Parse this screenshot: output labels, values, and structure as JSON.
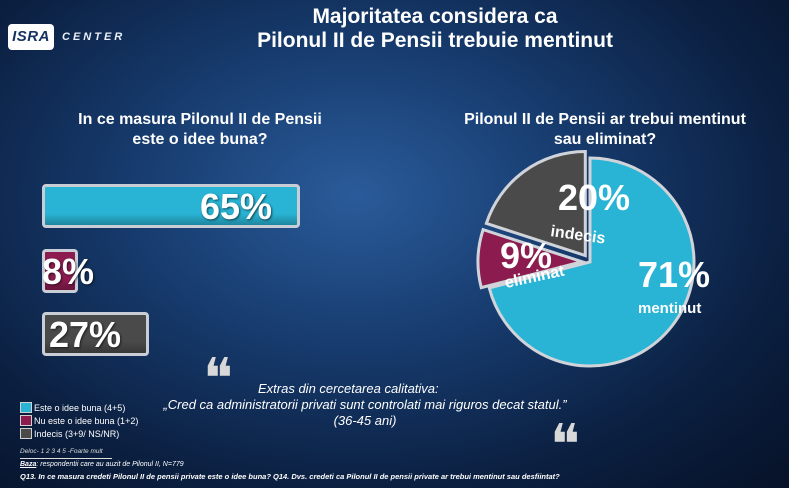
{
  "brand": {
    "logo_text": "ISRA",
    "center_text": "CENTER"
  },
  "title": {
    "line1": "Majoritatea considera ca",
    "line2": "Pilonul II de Pensii trebuie mentinut"
  },
  "chart_data": [
    {
      "type": "bar",
      "title_line1": "In ce masura Pilonul II de Pensii",
      "title_line2": "este o idee buna?",
      "categories": [
        "Este o idee buna (4+5)",
        "Nu este o idee buna (1+2)",
        "Indecis (3+9/ NS/NR)"
      ],
      "values": [
        65,
        8,
        27
      ],
      "labels": [
        "65%",
        "8%",
        "27%"
      ],
      "colors": [
        "#29b3d4",
        "#8c1c4f",
        "#4a4a4a"
      ],
      "xlim": [
        0,
        100
      ]
    },
    {
      "type": "pie",
      "title_line1": "Pilonul II de Pensii ar trebui mentinut",
      "title_line2": "sau eliminat?",
      "slices": [
        {
          "name": "mentinut",
          "value": 71,
          "label": "71%",
          "color": "#29b3d4"
        },
        {
          "name": "eliminat",
          "value": 9,
          "label": "9%",
          "color": "#8c1c4f"
        },
        {
          "name": "indecis",
          "value": 20,
          "label": "20%",
          "color": "#4a4a4a"
        }
      ]
    }
  ],
  "legend": [
    {
      "label": "Este o idee buna  (4+5)",
      "color": "#29b3d4"
    },
    {
      "label": "Nu este o idee buna (1+2)",
      "color": "#8c1c4f"
    },
    {
      "label": "Indecis (3+9/ NS/NR)",
      "color": "#4a4a4a"
    }
  ],
  "scale_text": "Deloc- 1 2 3 4 5 -Foarte mult",
  "extract": {
    "title": "Extras din cercetarea calitativa:",
    "quote": "„Cred ca administratorii privati sunt controlati mai riguros decat statul.” (36-45 ani)"
  },
  "baza": {
    "label": "Baza",
    "text": ": respondentii care au auzit de Pilonul II, N=779"
  },
  "footnote": "Q13. In ce masura credeti Pilonul II de pensii private este o idee buna? Q14. Dvs. credeti ca Pilonul II de pensii private ar trebui mentinut sau desfiintat?"
}
